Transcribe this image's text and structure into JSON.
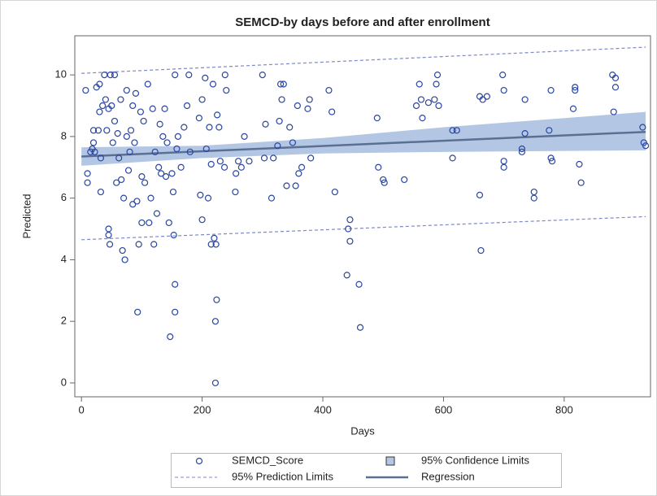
{
  "chart_data": {
    "type": "scatter",
    "title": "SEMCD-by days before and after enrollment",
    "x_label": "Days",
    "y_label": "Predicted",
    "xlim": [
      -11,
      943
    ],
    "ylim": [
      -0.45,
      11.27
    ],
    "xticks": [
      0,
      200,
      400,
      600,
      800
    ],
    "yticks": [
      0,
      2,
      4,
      6,
      8,
      10
    ],
    "grid": false,
    "legend": "bottom",
    "series": [
      {
        "name": "SEMCD_Score",
        "type": "scatter",
        "color": "#2a46a0",
        "x": [
          7,
          10,
          10,
          15,
          18,
          20,
          20,
          22,
          25,
          28,
          30,
          30,
          32,
          32,
          35,
          38,
          40,
          42,
          45,
          45,
          45,
          47,
          48,
          50,
          52,
          55,
          55,
          58,
          60,
          62,
          65,
          66,
          68,
          70,
          72,
          75,
          75,
          78,
          80,
          82,
          85,
          85,
          88,
          90,
          92,
          93,
          95,
          98,
          100,
          100,
          103,
          105,
          110,
          112,
          115,
          118,
          120,
          122,
          125,
          128,
          130,
          132,
          135,
          138,
          140,
          142,
          145,
          147,
          150,
          152,
          153,
          155,
          155,
          155,
          158,
          160,
          165,
          170,
          175,
          178,
          180,
          195,
          197,
          200,
          200,
          205,
          207,
          210,
          212,
          215,
          215,
          218,
          220,
          222,
          222,
          223,
          224,
          225,
          228,
          230,
          237,
          238,
          240,
          255,
          256,
          260,
          265,
          270,
          278,
          300,
          303,
          305,
          315,
          318,
          325,
          328,
          330,
          332,
          335,
          340,
          345,
          350,
          355,
          358,
          360,
          365,
          375,
          378,
          380,
          410,
          415,
          420,
          440,
          442,
          445,
          445,
          460,
          462,
          490,
          492,
          500,
          502,
          535,
          555,
          560,
          563,
          565,
          575,
          585,
          588,
          590,
          592,
          615,
          615,
          622,
          660,
          662,
          660,
          665,
          672,
          698,
          700,
          700,
          700,
          730,
          730,
          735,
          735,
          750,
          750,
          775,
          778,
          778,
          780,
          815,
          818,
          818,
          825,
          828,
          880,
          882,
          885,
          885,
          930,
          932,
          935
        ],
        "values": [
          9.5,
          6.8,
          6.5,
          7.5,
          7.6,
          8.2,
          7.8,
          7.5,
          9.6,
          8.2,
          9.7,
          8.8,
          6.2,
          7.3,
          9.0,
          10,
          9.2,
          8.2,
          8.9,
          5.0,
          4.8,
          4.5,
          10,
          9.0,
          7.8,
          8.5,
          10,
          6.5,
          8.1,
          7.3,
          9.2,
          6.6,
          4.3,
          6.0,
          4.0,
          9.5,
          8.0,
          6.9,
          7.5,
          8.2,
          9.0,
          5.8,
          7.8,
          9.4,
          5.9,
          2.3,
          4.5,
          8.8,
          6.7,
          5.2,
          8.5,
          6.5,
          9.7,
          5.2,
          6.0,
          8.9,
          4.5,
          7.5,
          5.5,
          7.0,
          8.4,
          6.8,
          8.0,
          8.9,
          6.7,
          7.8,
          5.2,
          1.5,
          6.8,
          6.2,
          4.8,
          10,
          3.2,
          2.3,
          7.6,
          8.0,
          7.0,
          8.3,
          9.0,
          10,
          7.5,
          8.6,
          6.1,
          5.3,
          9.2,
          9.9,
          7.6,
          6.0,
          8.3,
          4.5,
          7.1,
          9.7,
          4.7,
          2.0,
          0,
          4.5,
          2.7,
          8.7,
          8.3,
          7.2,
          7.0,
          10,
          9.5,
          6.2,
          6.8,
          7.2,
          7.0,
          8.0,
          7.2,
          10,
          7.3,
          8.4,
          6.0,
          7.3,
          7.7,
          8.5,
          9.7,
          9.2,
          9.7,
          6.4,
          8.3,
          7.8,
          6.4,
          9.0,
          6.8,
          7.0,
          8.9,
          9.2,
          7.3,
          9.5,
          8.8,
          6.2,
          3.5,
          5.0,
          5.3,
          4.6,
          3.2,
          1.8,
          8.6,
          7.0,
          6.6,
          6.5,
          6.6,
          9.0,
          9.7,
          9.2,
          8.6,
          9.1,
          9.2,
          9.7,
          10,
          9.0,
          8.2,
          7.3,
          8.2,
          6.1,
          4.3,
          9.3,
          9.2,
          9.3,
          10,
          7.2,
          7.0,
          9.5,
          7.6,
          7.5,
          8.1,
          9.2,
          6.2,
          6.0,
          8.2,
          9.5,
          7.3,
          7.2,
          8.9,
          9.6,
          9.5,
          7.1,
          6.5,
          10,
          8.8,
          9.9,
          9.6,
          8.3,
          7.8,
          7.7
        ]
      },
      {
        "name": "95% Confidence Limits",
        "type": "band",
        "color": "#b3c7e5",
        "x": [
          0,
          200,
          400,
          600,
          935
        ],
        "lower": [
          7.05,
          7.3,
          7.45,
          7.5,
          7.55
        ],
        "upper": [
          7.65,
          7.7,
          7.95,
          8.3,
          8.8
        ]
      },
      {
        "name": "95% Prediction Limits",
        "type": "limits",
        "color": "#7f88c8",
        "x": [
          0,
          935
        ],
        "lower": [
          4.65,
          5.4
        ],
        "upper": [
          10.05,
          10.9
        ]
      },
      {
        "name": "Regression",
        "type": "line",
        "color": "#5b6f93",
        "x": [
          0,
          935
        ],
        "values": [
          7.35,
          8.15
        ]
      }
    ]
  }
}
